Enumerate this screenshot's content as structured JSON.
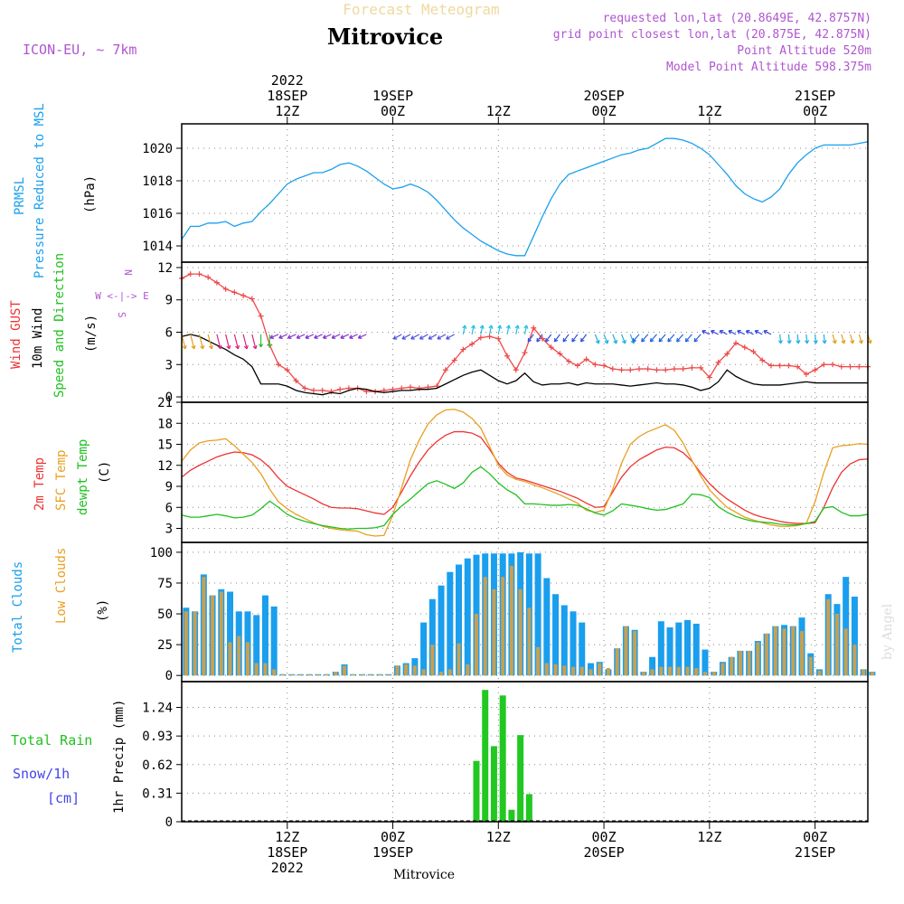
{
  "header": {
    "top_title": "Forecast Meteogram",
    "location": "Mitrovice",
    "model": "ICON-EU, ~ 7km",
    "requested": "requested lon,lat (20.8649E, 42.8757N)",
    "grid_point": "grid point closest lon,lat (20.875E, 42.875N)",
    "point_altitude": "Point Altitude 520m",
    "model_altitude": "Model Point Altitude 598.375m",
    "bottom_label": "Mitrovice",
    "watermark": "by Angel"
  },
  "colors": {
    "prmsl": "#1aa0ee",
    "gust": "#f04848",
    "wind": "#000000",
    "temp2m": "#ee3333",
    "sfc": "#e8a020",
    "dewpt": "#20c020",
    "total_cloud": "#1a9eee",
    "low_cloud": "#c8a050",
    "rain": "#22c822",
    "snow": "#4444ee",
    "label_purple": "#b055d0"
  },
  "time_axis": {
    "top_labels": [
      {
        "hour": 12,
        "lines": [
          "2022",
          "18SEP",
          "12Z"
        ]
      },
      {
        "hour": 24,
        "lines": [
          "19SEP",
          "00Z"
        ]
      },
      {
        "hour": 36,
        "lines": [
          "12Z"
        ]
      },
      {
        "hour": 48,
        "lines": [
          "20SEP",
          "00Z"
        ]
      },
      {
        "hour": 60,
        "lines": [
          "12Z"
        ]
      },
      {
        "hour": 72,
        "lines": [
          "21SEP",
          "00Z"
        ]
      }
    ],
    "bottom_labels": [
      {
        "hour": 12,
        "lines": [
          "12Z",
          "18SEP",
          "2022"
        ]
      },
      {
        "hour": 24,
        "lines": [
          "00Z",
          "19SEP"
        ]
      },
      {
        "hour": 36,
        "lines": [
          "12Z"
        ]
      },
      {
        "hour": 48,
        "lines": [
          "00Z",
          "20SEP"
        ]
      },
      {
        "hour": 60,
        "lines": [
          "12Z"
        ]
      },
      {
        "hour": 72,
        "lines": [
          "00Z",
          "21SEP"
        ]
      }
    ]
  },
  "panel_labels": {
    "pressure": [
      "PRMSL",
      "Pressure Reduced to MSL",
      "(hPa)"
    ],
    "wind": [
      "Wind GUST",
      "10m Wind",
      "Speed and Direction",
      "(m/s)"
    ],
    "compass": [
      "N",
      "W <-|-> E",
      "S"
    ],
    "temp": [
      "2m Temp",
      "SFC Temp",
      "dewpt Temp",
      "(C)"
    ],
    "cloud": [
      "Total Clouds",
      "Low Clouds",
      "(%)"
    ],
    "rain": [
      "Total Rain",
      "Snow/1h",
      "[cm]",
      "1hr Precip (mm)"
    ]
  },
  "chart_data": [
    {
      "type": "line",
      "panel": "pressure",
      "ylabel": "(hPa)",
      "ylim": [
        1013,
        1021.5
      ],
      "yticks": [
        1014,
        1016,
        1018,
        1020
      ],
      "x_hours": [
        0,
        1,
        2,
        3,
        4,
        5,
        6,
        7,
        8,
        9,
        10,
        11,
        12,
        13,
        14,
        15,
        16,
        17,
        18,
        19,
        20,
        21,
        22,
        23,
        24,
        25,
        26,
        27,
        28,
        29,
        30,
        31,
        32,
        33,
        34,
        35,
        36,
        37,
        38,
        39,
        40,
        41,
        42,
        43,
        44,
        45,
        46,
        47,
        48,
        49,
        50,
        51,
        52,
        53,
        54,
        55,
        56,
        57,
        58,
        59,
        60,
        61,
        62,
        63,
        64,
        65,
        66,
        67,
        68,
        69,
        70,
        71,
        72,
        73,
        74,
        75,
        76,
        77,
        78
      ],
      "series": [
        {
          "name": "PRMSL",
          "color": "#1aa0ee",
          "values": [
            1014.4,
            1015.2,
            1015.2,
            1015.4,
            1015.4,
            1015.5,
            1015.2,
            1015.4,
            1015.5,
            1016.1,
            1016.6,
            1017.2,
            1017.8,
            1018.1,
            1018.3,
            1018.5,
            1018.5,
            1018.7,
            1019.0,
            1019.1,
            1018.9,
            1018.6,
            1018.2,
            1017.8,
            1017.5,
            1017.6,
            1017.8,
            1017.6,
            1017.3,
            1016.8,
            1016.2,
            1015.6,
            1015.1,
            1014.7,
            1014.3,
            1014.0,
            1013.7,
            1013.5,
            1013.4,
            1013.4,
            1014.6,
            1015.8,
            1016.9,
            1017.8,
            1018.4,
            1018.6,
            1018.8,
            1019.0,
            1019.2,
            1019.4,
            1019.6,
            1019.7,
            1019.9,
            1020.0,
            1020.3,
            1020.6,
            1020.6,
            1020.5,
            1020.3,
            1020.0,
            1019.6,
            1019.0,
            1018.4,
            1017.7,
            1017.2,
            1016.9,
            1016.7,
            1017.0,
            1017.5,
            1018.4,
            1019.1,
            1019.6,
            1020.0,
            1020.2,
            1020.2,
            1020.2,
            1020.2,
            1020.3,
            1020.4
          ]
        }
      ]
    },
    {
      "type": "line",
      "panel": "wind",
      "ylabel": "(m/s)",
      "ylim": [
        -0.5,
        12.5
      ],
      "yticks": [
        0,
        3,
        6,
        9,
        12
      ],
      "x_hours": [
        0,
        1,
        2,
        3,
        4,
        5,
        6,
        7,
        8,
        9,
        10,
        11,
        12,
        13,
        14,
        15,
        16,
        17,
        18,
        19,
        20,
        21,
        22,
        23,
        24,
        25,
        26,
        27,
        28,
        29,
        30,
        31,
        32,
        33,
        34,
        35,
        36,
        37,
        38,
        39,
        40,
        41,
        42,
        43,
        44,
        45,
        46,
        47,
        48,
        49,
        50,
        51,
        52,
        53,
        54,
        55,
        56,
        57,
        58,
        59,
        60,
        61,
        62,
        63,
        64,
        65,
        66,
        67,
        68,
        69,
        70,
        71,
        72,
        73,
        74,
        75,
        76,
        77,
        78
      ],
      "series": [
        {
          "name": "Wind GUST",
          "color": "#f04848",
          "values": [
            11.0,
            11.4,
            11.4,
            11.1,
            10.6,
            10.0,
            9.7,
            9.4,
            9.1,
            7.5,
            4.8,
            3.0,
            2.5,
            1.5,
            0.8,
            0.6,
            0.6,
            0.5,
            0.7,
            0.8,
            0.8,
            0.5,
            0.5,
            0.6,
            0.7,
            0.8,
            0.9,
            0.8,
            0.9,
            1.0,
            2.5,
            3.4,
            4.4,
            4.9,
            5.5,
            5.6,
            5.4,
            3.8,
            2.5,
            4.1,
            6.4,
            5.4,
            4.6,
            4.0,
            3.3,
            2.9,
            3.5,
            3.0,
            2.9,
            2.6,
            2.5,
            2.5,
            2.6,
            2.6,
            2.5,
            2.5,
            2.6,
            2.6,
            2.7,
            2.7,
            1.8,
            3.2,
            4.0,
            5.0,
            4.6,
            4.2,
            3.4,
            2.9,
            2.9,
            2.9,
            2.8,
            2.1,
            2.5,
            3.0,
            3.0,
            2.8,
            2.8,
            2.8,
            2.8
          ]
        },
        {
          "name": "10m Wind",
          "color": "#000000",
          "values": [
            5.6,
            5.8,
            5.6,
            5.2,
            4.8,
            4.4,
            3.9,
            3.5,
            2.8,
            1.2,
            1.2,
            1.2,
            1.0,
            0.6,
            0.4,
            0.3,
            0.2,
            0.4,
            0.3,
            0.6,
            0.8,
            0.7,
            0.5,
            0.4,
            0.5,
            0.6,
            0.6,
            0.7,
            0.7,
            0.8,
            1.2,
            1.6,
            2.0,
            2.3,
            2.5,
            2.0,
            1.5,
            1.2,
            1.5,
            2.2,
            1.4,
            1.1,
            1.2,
            1.2,
            1.3,
            1.1,
            1.3,
            1.2,
            1.2,
            1.2,
            1.1,
            1.0,
            1.1,
            1.2,
            1.3,
            1.2,
            1.2,
            1.1,
            0.9,
            0.6,
            0.8,
            1.4,
            2.5,
            1.9,
            1.5,
            1.2,
            1.1,
            1.1,
            1.1,
            1.2,
            1.3,
            1.4,
            1.3,
            1.3,
            1.3,
            1.3,
            1.3,
            1.3,
            1.3
          ]
        }
      ]
    },
    {
      "type": "line",
      "panel": "temperature",
      "ylabel": "(C)",
      "ylim": [
        1,
        21
      ],
      "yticks": [
        3,
        6,
        9,
        12,
        15,
        18,
        21
      ],
      "x_hours": [
        0,
        1,
        2,
        3,
        4,
        5,
        6,
        7,
        8,
        9,
        10,
        11,
        12,
        13,
        14,
        15,
        16,
        17,
        18,
        19,
        20,
        21,
        22,
        23,
        24,
        25,
        26,
        27,
        28,
        29,
        30,
        31,
        32,
        33,
        34,
        35,
        36,
        37,
        38,
        39,
        40,
        41,
        42,
        43,
        44,
        45,
        46,
        47,
        48,
        49,
        50,
        51,
        52,
        53,
        54,
        55,
        56,
        57,
        58,
        59,
        60,
        61,
        62,
        63,
        64,
        65,
        66,
        67,
        68,
        69,
        70,
        71,
        72,
        73,
        74,
        75,
        76,
        77,
        78
      ],
      "series": [
        {
          "name": "2m Temp",
          "color": "#ee3333",
          "values": [
            10.3,
            11.3,
            12.0,
            12.6,
            13.2,
            13.6,
            13.9,
            13.8,
            13.5,
            12.8,
            11.7,
            10.2,
            9.0,
            8.4,
            7.8,
            7.2,
            6.5,
            6.0,
            5.9,
            5.9,
            5.8,
            5.5,
            5.2,
            5.0,
            6.0,
            8.2,
            10.5,
            12.5,
            14.2,
            15.4,
            16.3,
            16.8,
            16.8,
            16.6,
            16.0,
            14.3,
            12.3,
            11.0,
            10.2,
            9.9,
            9.5,
            9.1,
            8.7,
            8.3,
            7.8,
            7.3,
            6.6,
            6.0,
            6.1,
            8.2,
            10.3,
            11.8,
            12.8,
            13.5,
            14.2,
            14.6,
            14.5,
            13.8,
            12.6,
            10.9,
            9.4,
            8.2,
            7.2,
            6.4,
            5.6,
            5.0,
            4.6,
            4.3,
            4.0,
            3.8,
            3.7,
            3.7,
            3.8,
            6.0,
            8.8,
            11.0,
            12.2,
            12.8,
            12.9
          ]
        },
        {
          "name": "SFC Temp",
          "color": "#e8a020",
          "values": [
            12.6,
            14.2,
            15.2,
            15.5,
            15.6,
            15.8,
            14.8,
            13.6,
            12.4,
            10.8,
            8.6,
            6.8,
            5.8,
            5.0,
            4.4,
            3.8,
            3.3,
            3.0,
            2.8,
            2.7,
            2.6,
            2.1,
            1.9,
            2.0,
            4.9,
            8.8,
            12.8,
            15.6,
            17.9,
            19.2,
            19.9,
            20.0,
            19.6,
            18.7,
            17.3,
            14.7,
            12.0,
            10.6,
            10.0,
            9.7,
            9.2,
            8.8,
            8.3,
            7.8,
            7.2,
            6.6,
            5.6,
            5.3,
            5.6,
            8.6,
            12.3,
            15.0,
            16.1,
            16.8,
            17.3,
            17.8,
            17.0,
            15.2,
            12.7,
            10.5,
            8.5,
            7.2,
            6.0,
            5.3,
            4.6,
            4.2,
            3.8,
            3.5,
            3.3,
            3.3,
            3.4,
            3.7,
            6.8,
            11.0,
            14.5,
            14.8,
            14.9,
            15.1,
            15.0
          ]
        },
        {
          "name": "dewpt Temp",
          "color": "#20c020",
          "values": [
            4.9,
            4.6,
            4.6,
            4.8,
            5.0,
            4.8,
            4.5,
            4.6,
            4.9,
            5.8,
            6.9,
            6.0,
            5.0,
            4.4,
            4.0,
            3.7,
            3.4,
            3.2,
            3.0,
            2.9,
            3.0,
            3.0,
            3.1,
            3.4,
            5.0,
            6.2,
            7.2,
            8.3,
            9.4,
            9.8,
            9.3,
            8.7,
            9.5,
            11.0,
            11.8,
            10.8,
            9.5,
            8.5,
            7.8,
            6.5,
            6.5,
            6.4,
            6.3,
            6.3,
            6.4,
            6.3,
            5.8,
            5.2,
            4.9,
            5.5,
            6.5,
            6.3,
            6.1,
            5.8,
            5.6,
            5.7,
            6.1,
            6.5,
            7.9,
            7.8,
            7.4,
            6.1,
            5.3,
            4.7,
            4.3,
            4.0,
            3.9,
            3.8,
            3.6,
            3.5,
            3.5,
            3.7,
            4.0,
            5.9,
            6.1,
            5.3,
            4.8,
            4.8,
            5.0
          ]
        }
      ]
    },
    {
      "type": "bar",
      "panel": "clouds",
      "ylabel": "(%)",
      "ylim": [
        -5,
        108
      ],
      "yticks": [
        0,
        25,
        50,
        75,
        100
      ],
      "x_hours": [
        0,
        1,
        2,
        3,
        4,
        5,
        6,
        7,
        8,
        9,
        10,
        11,
        12,
        13,
        14,
        15,
        16,
        17,
        18,
        19,
        20,
        21,
        22,
        23,
        24,
        25,
        26,
        27,
        28,
        29,
        30,
        31,
        32,
        33,
        34,
        35,
        36,
        37,
        38,
        39,
        40,
        41,
        42,
        43,
        44,
        45,
        46,
        47,
        48,
        49,
        50,
        51,
        52,
        53,
        54,
        55,
        56,
        57,
        58,
        59,
        60,
        61,
        62,
        63,
        64,
        65,
        66,
        67,
        68,
        69,
        70,
        71,
        72,
        73,
        74,
        75,
        76,
        77,
        78
      ],
      "series": [
        {
          "name": "Total Clouds",
          "color": "#1a9eee",
          "values": [
            55,
            52,
            82,
            65,
            70,
            68,
            52,
            52,
            49,
            65,
            56,
            1,
            1,
            1,
            1,
            1,
            1,
            3,
            9,
            1,
            1,
            1,
            1,
            1,
            8,
            10,
            14,
            43,
            62,
            73,
            84,
            90,
            95,
            98,
            99,
            99,
            99,
            99,
            100,
            99,
            99,
            79,
            66,
            57,
            52,
            43,
            10,
            11,
            5,
            22,
            40,
            37,
            3,
            15,
            44,
            39,
            43,
            45,
            42,
            21,
            3,
            11,
            15,
            20,
            20,
            28,
            34,
            40,
            41,
            40,
            47,
            18,
            5,
            66,
            58,
            80,
            64,
            5,
            3
          ]
        },
        {
          "name": "Low Clouds",
          "color": "#c8a050",
          "values": [
            52,
            52,
            80,
            65,
            68,
            27,
            32,
            27,
            10,
            10,
            5,
            1,
            1,
            1,
            1,
            1,
            1,
            3,
            8,
            1,
            1,
            1,
            1,
            1,
            8,
            9,
            8,
            5,
            25,
            3,
            5,
            26,
            9,
            50,
            80,
            70,
            80,
            89,
            70,
            55,
            23,
            10,
            9,
            8,
            7,
            7,
            5,
            10,
            6,
            22,
            40,
            36,
            3,
            5,
            7,
            7,
            7,
            7,
            6,
            3,
            3,
            10,
            15,
            20,
            20,
            27,
            34,
            40,
            38,
            40,
            36,
            15,
            4,
            62,
            50,
            38,
            25,
            5,
            3
          ]
        }
      ]
    },
    {
      "type": "bar",
      "panel": "precipitation",
      "ylabel": "1hr Precip (mm)",
      "ylim": [
        0,
        1.52
      ],
      "yticks": [
        0,
        0.31,
        0.62,
        0.93,
        1.24
      ],
      "x_hours": [
        33,
        34,
        35,
        36,
        37,
        38,
        39
      ],
      "series": [
        {
          "name": "Total Rain",
          "color": "#22c822",
          "values": [
            0.66,
            1.43,
            0.82,
            1.37,
            0.13,
            0.94,
            0.3
          ]
        },
        {
          "name": "Snow/1h",
          "color": "#4444ee",
          "values": [
            0,
            0,
            0,
            0,
            0,
            0,
            0
          ]
        }
      ]
    }
  ]
}
